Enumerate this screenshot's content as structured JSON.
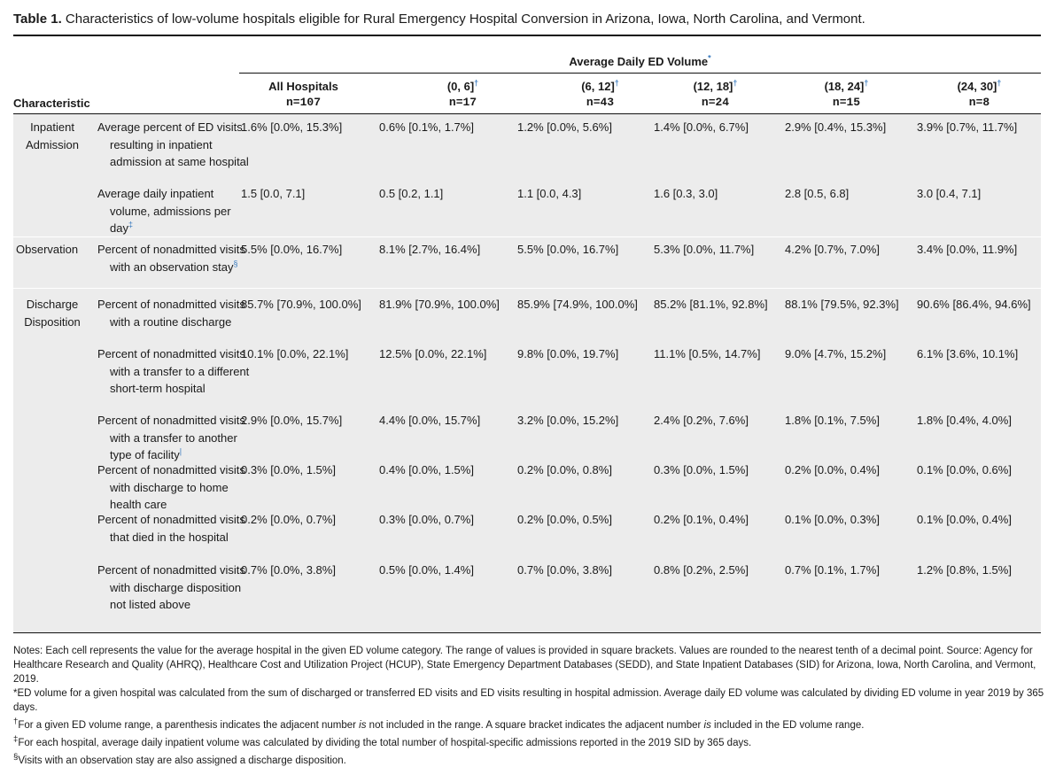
{
  "caption": {
    "label": "Table 1.",
    "text": "Characteristics of low-volume hospitals eligible for Rural Emergency Hospital Conversion in Arizona, Iowa, North Carolina, and Vermont."
  },
  "header": {
    "span_label": "Average Daily ED Volume",
    "span_mark": "*",
    "characteristic_label": "Characteristic",
    "columns": [
      {
        "label": "All Hospitals",
        "mark": "",
        "n": "n=107"
      },
      {
        "label": "(0, 6]",
        "mark": "†",
        "n": "n=17"
      },
      {
        "label": "(6, 12]",
        "mark": "†",
        "n": "n=43"
      },
      {
        "label": "(12, 18]",
        "mark": "†",
        "n": "n=24"
      },
      {
        "label": "(18, 24]",
        "mark": "†",
        "n": "n=15"
      },
      {
        "label": "(24, 30]",
        "mark": "†",
        "n": "n=8"
      }
    ]
  },
  "groups": [
    {
      "label": "Inpatient Admission",
      "rows": [
        {
          "characteristic": "Average percent of ED visits resulting in inpatient admission at same hospital",
          "mark": "",
          "values": [
            "1.6% [0.0%, 15.3%]",
            "0.6% [0.1%, 1.7%]",
            "1.2% [0.0%, 5.6%]",
            "1.4% [0.0%, 6.7%]",
            "2.9% [0.4%, 15.3%]",
            "3.9% [0.7%, 11.7%]"
          ]
        },
        {
          "characteristic": "Average daily inpatient volume, admissions per day",
          "mark": "‡",
          "values": [
            "1.5 [0.0, 7.1]",
            "0.5 [0.2, 1.1]",
            "1.1 [0.0, 4.3]",
            "1.6 [0.3, 3.0]",
            "2.8 [0.5, 6.8]",
            "3.0 [0.4, 7.1]"
          ]
        }
      ]
    },
    {
      "label": "Observation",
      "rows": [
        {
          "characteristic": "Percent of nonadmitted visits with an observation stay",
          "mark": "§",
          "values": [
            "5.5% [0.0%, 16.7%]",
            "8.1% [2.7%, 16.4%]",
            "5.5% [0.0%, 16.7%]",
            "5.3% [0.0%, 11.7%]",
            "4.2% [0.7%, 7.0%]",
            "3.4% [0.0%, 11.9%]"
          ]
        }
      ]
    },
    {
      "label": "Discharge Disposition",
      "rows": [
        {
          "characteristic": "Percent of nonadmitted visits with a routine discharge",
          "mark": "",
          "values": [
            "85.7% [70.9%, 100.0%]",
            "81.9% [70.9%, 100.0%]",
            "85.9% [74.9%, 100.0%]",
            "85.2% [81.1%, 92.8%]",
            "88.1% [79.5%, 92.3%]",
            "90.6% [86.4%, 94.6%]"
          ]
        },
        {
          "characteristic": "Percent of nonadmitted visits with a transfer to a different short-term hospital",
          "mark": "",
          "values": [
            "10.1% [0.0%, 22.1%]",
            "12.5% [0.0%, 22.1%]",
            "9.8% [0.0%, 19.7%]",
            "11.1% [0.5%, 14.7%]",
            "9.0% [4.7%, 15.2%]",
            "6.1% [3.6%, 10.1%]"
          ]
        },
        {
          "characteristic": "Percent of nonadmitted visits with a transfer to another type of facility",
          "mark": "|",
          "values": [
            "2.9% [0.0%, 15.7%]",
            "4.4% [0.0%, 15.7%]",
            "3.2% [0.0%, 15.2%]",
            "2.4% [0.2%, 7.6%]",
            "1.8% [0.1%, 7.5%]",
            "1.8% [0.4%, 4.0%]"
          ]
        },
        {
          "characteristic": "Percent of nonadmitted visits with discharge to home health care",
          "mark": "",
          "values": [
            "0.3% [0.0%, 1.5%]",
            "0.4% [0.0%, 1.5%]",
            "0.2% [0.0%, 0.8%]",
            "0.3% [0.0%, 1.5%]",
            "0.2% [0.0%, 0.4%]",
            "0.1% [0.0%, 0.6%]"
          ]
        },
        {
          "characteristic": "Percent of nonadmitted visits that died in the hospital",
          "mark": "",
          "values": [
            "0.2% [0.0%, 0.7%]",
            "0.3% [0.0%, 0.7%]",
            "0.2% [0.0%, 0.5%]",
            "0.2% [0.1%, 0.4%]",
            "0.1% [0.0%, 0.3%]",
            "0.1% [0.0%, 0.4%]"
          ]
        },
        {
          "characteristic": "Percent of nonadmitted visits with discharge disposition not listed above",
          "mark": "",
          "values": [
            "0.7% [0.0%, 3.8%]",
            "0.5% [0.0%, 1.4%]",
            "0.7% [0.0%, 3.8%]",
            "0.8% [0.2%, 2.5%]",
            "0.7% [0.1%, 1.7%]",
            "1.2% [0.8%, 1.5%]"
          ]
        }
      ]
    }
  ],
  "notes": {
    "general": "Notes: Each cell represents the value for the average hospital in the given ED volume category. The range of values is provided in square brackets. Values are rounded to the nearest tenth of a decimal point. Source: Agency for Healthcare Research and Quality (AHRQ), Healthcare Cost and Utilization Project (HCUP), State Emergency Department Databases (SEDD), and State Inpatient Databases (SID) for Arizona, Iowa, North Carolina, and Vermont, 2019.",
    "star": "*ED volume for a given hospital was calculated from the sum of discharged or transferred ED visits and ED visits resulting in hospital admission. Average daily ED volume was calculated by dividing ED volume in year 2019 by 365 days.",
    "dagger_a": "For a given ED volume range, a parenthesis indicates the adjacent number ",
    "dagger_is1": "is",
    "dagger_b": " not included in the range. A square bracket indicates the adjacent number ",
    "dagger_is2": "is",
    "dagger_c": " included in the ED volume range.",
    "ddagger": "For each hospital, average daily inpatient volume was calculated by dividing the total number of hospital-specific admissions reported in the 2019 SID by 365 days.",
    "section": "Visits with an observation stay are also assigned a discharge disposition.",
    "marks": {
      "dagger": "†",
      "ddagger": "‡",
      "section": "§"
    }
  }
}
